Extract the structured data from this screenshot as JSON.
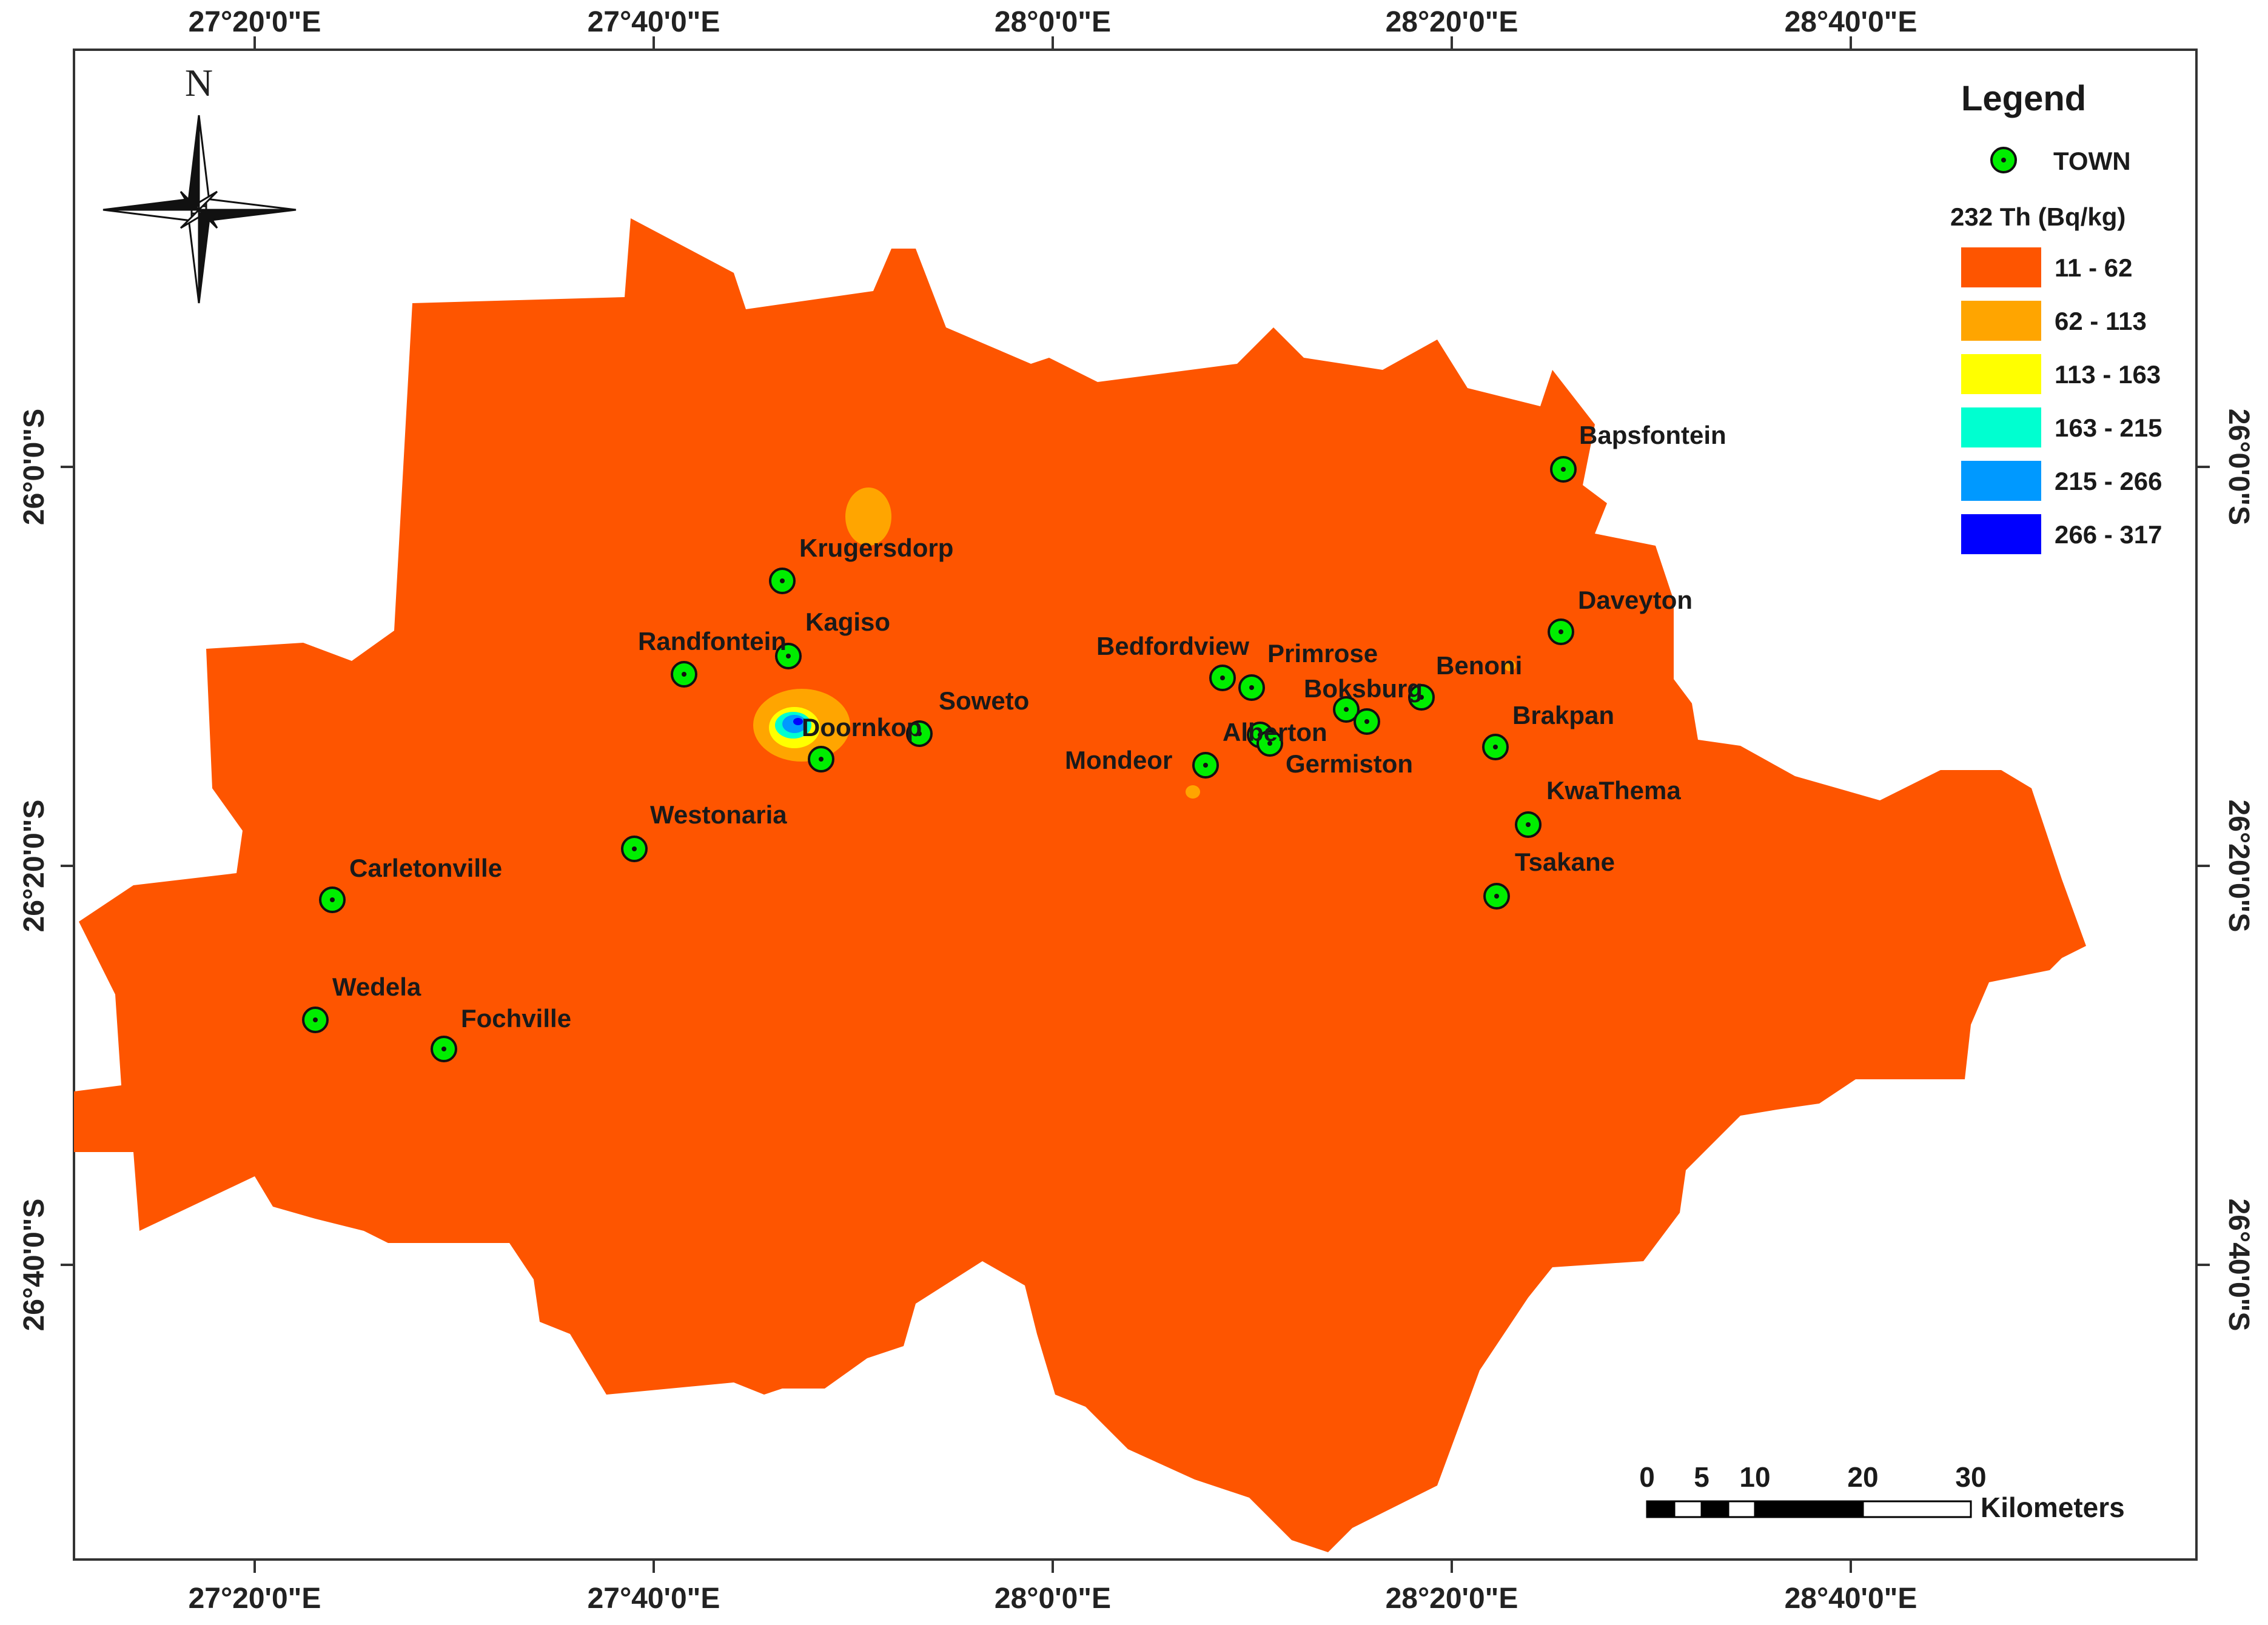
{
  "map": {
    "colors": {
      "region_fill": "#fe5500",
      "class_62_113": "#ffa500",
      "class_113_163": "#ffff00",
      "class_163_215": "#00ffd0",
      "class_215_266": "#0099ff",
      "class_266_317": "#0000ff",
      "town_fill": "#00ee00",
      "frame": "#333333"
    },
    "top_ticks": [
      "27°20'0\"E",
      "27°40'0\"E",
      "28°0'0\"E",
      "28°20'0\"E",
      "28°40'0\"E"
    ],
    "bottom_ticks": [
      "27°20'0\"E",
      "27°40'0\"E",
      "28°0'0\"E",
      "28°20'0\"E",
      "28°40'0\"E"
    ],
    "left_ticks": [
      "26°0'0\"S",
      "26°20'0\"S",
      "26°40'0\"S"
    ],
    "right_ticks": [
      "26°0'0\"S",
      "26°20'0\"S",
      "26°40'0\"S"
    ],
    "north_letter": "N",
    "towns": [
      "Bapsfontein",
      "Krugersdorp",
      "Kagiso",
      "Randfontein",
      "Daveyton",
      "Bedfordview",
      "Primrose",
      "Benoni",
      "Boksburg",
      "Soweto",
      "Doornkop",
      "Alberton",
      "Brakpan",
      "Germiston",
      "Mondeor",
      "KwaThema",
      "Westonaria",
      "Tsakane",
      "Carletonville",
      "Wedela",
      "Fochville"
    ]
  },
  "legend": {
    "title": "Legend",
    "town_label": "TOWN",
    "variable_label": "232 Th (Bq/kg)",
    "classes": [
      {
        "label": "11 - 62",
        "color": "#fe5500"
      },
      {
        "label": "62 - 113",
        "color": "#ffa500"
      },
      {
        "label": "113 - 163",
        "color": "#ffff00"
      },
      {
        "label": "163 - 215",
        "color": "#00ffd0"
      },
      {
        "label": "215 - 266",
        "color": "#0099ff"
      },
      {
        "label": "266 - 317",
        "color": "#0000ff"
      }
    ]
  },
  "scale_bar": {
    "ticks": [
      "0",
      "5",
      "10",
      "20",
      "30"
    ],
    "unit": "Kilometers"
  }
}
